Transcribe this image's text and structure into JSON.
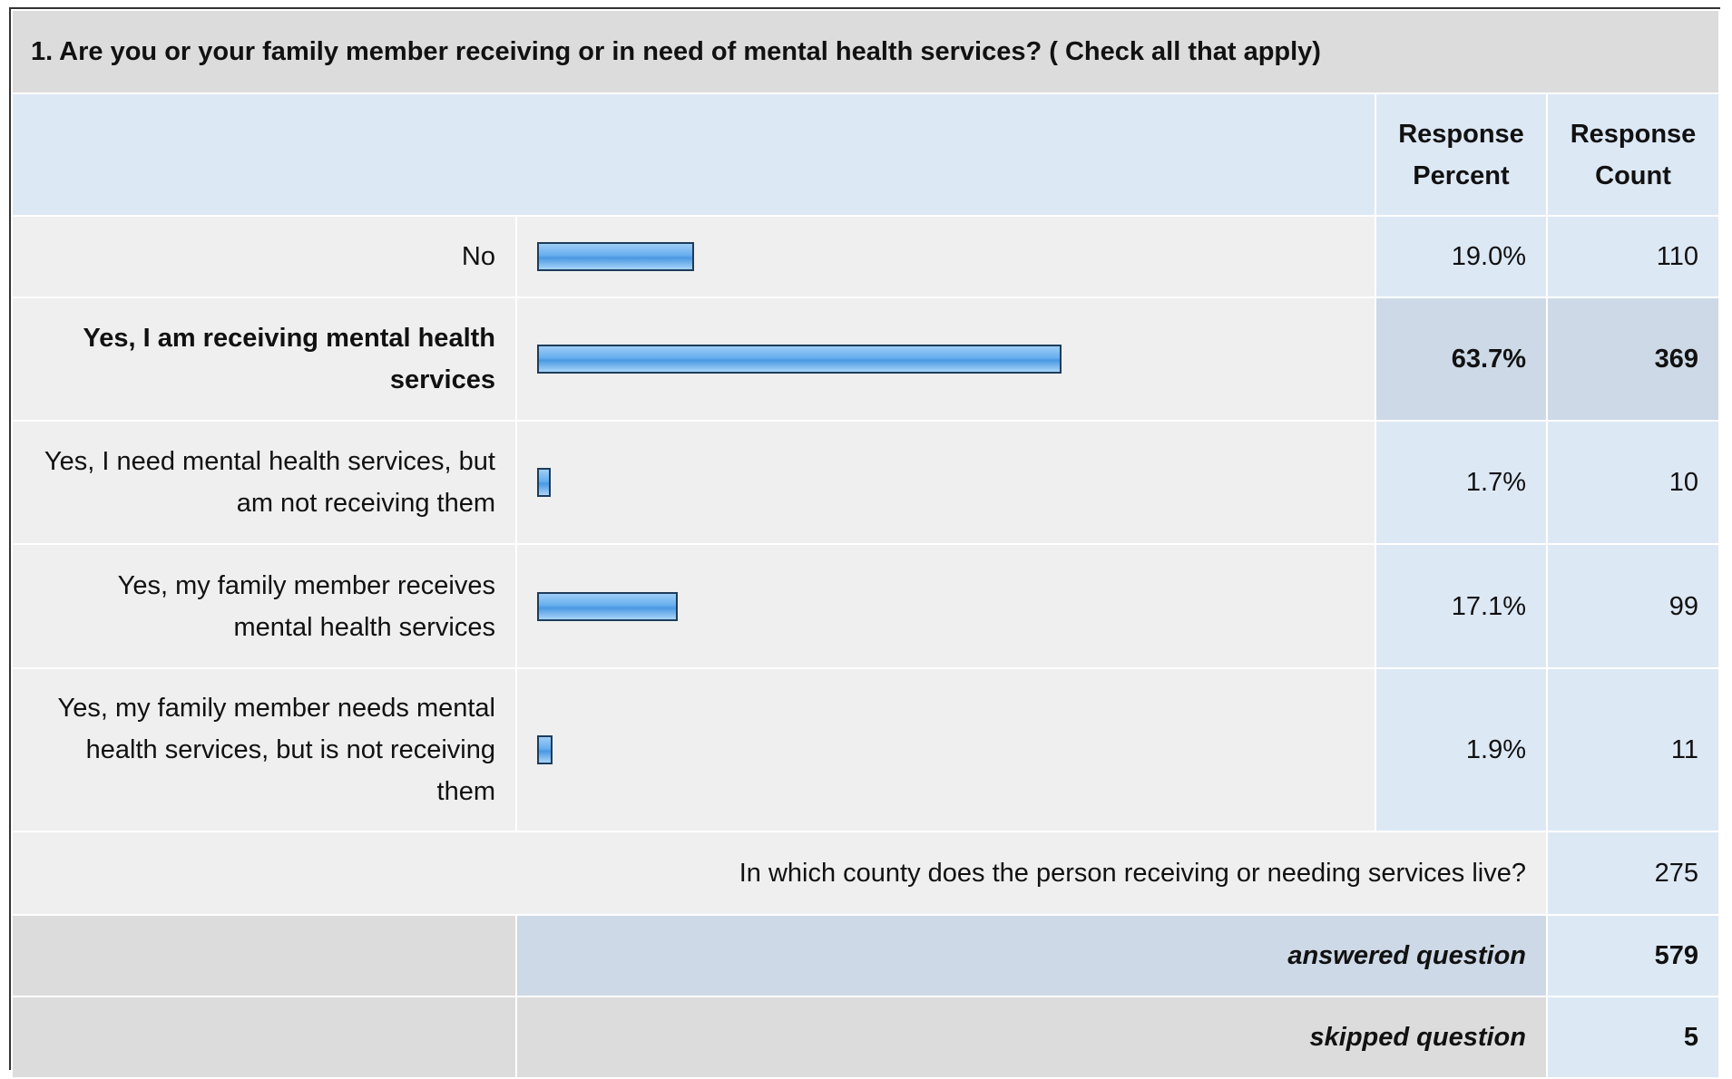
{
  "title": "1. Are you or your family member receiving or in need of mental health services? ( Check all that apply)",
  "header": {
    "percent": "Response Percent",
    "count": "Response Count"
  },
  "rows": [
    {
      "label": "No",
      "percent": {
        "value": 19.0,
        "label": "19.0%"
      },
      "count": 110
    },
    {
      "label": "Yes, I am receiving mental health services",
      "percent": {
        "value": 63.7,
        "label": "63.7%"
      },
      "count": 369
    },
    {
      "label": "Yes, I need mental health services, but am not receiving them",
      "percent": {
        "value": 1.7,
        "label": "1.7%"
      },
      "count": 10
    },
    {
      "label": "Yes, my family member receives mental health services",
      "percent": {
        "value": 17.1,
        "label": "17.1%"
      },
      "count": 99
    },
    {
      "label": "Yes, my family member needs mental health services, but is not receiving them",
      "percent": {
        "value": 1.9,
        "label": "1.9%"
      },
      "count": 11
    }
  ],
  "county": {
    "label": "In which county does the person receiving or needing services live?",
    "count": 275
  },
  "answered": {
    "label": "answered question",
    "count": 579
  },
  "skipped": {
    "label": "skipped question",
    "count": 5
  }
}
